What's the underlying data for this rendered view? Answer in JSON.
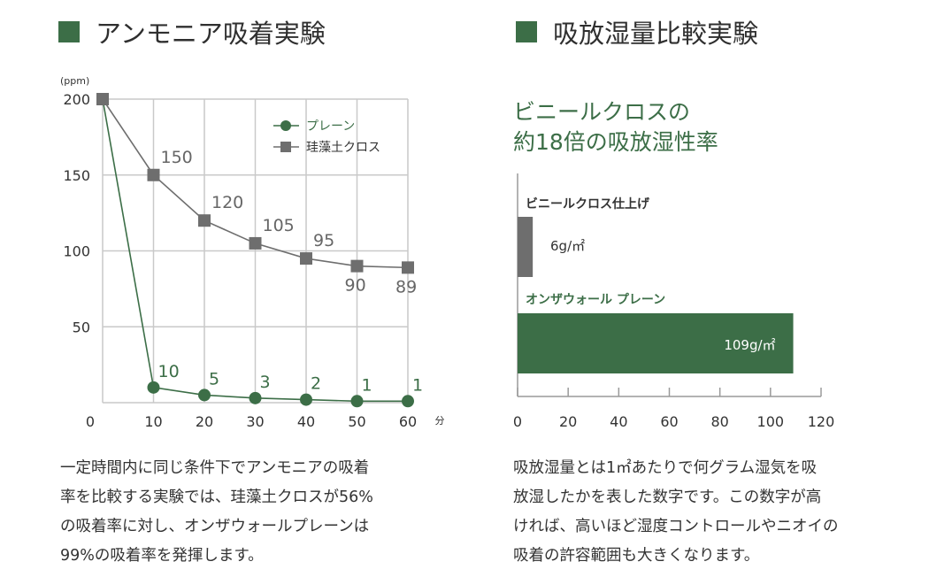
{
  "colors": {
    "accent": "#3c6e47",
    "gray": "#6e6e6e",
    "grid": "#c9c9c9"
  },
  "left_panel": {
    "title": "アンモニア吸着実験",
    "description": "一定時間内に同じ条件下でアンモニアの吸着\n率を比較する実験では、珪藻土クロスが56%\nの吸着率に対し、オンザウォールプレーンは\n99%の吸着率を発揮します。"
  },
  "right_panel": {
    "title": "吸放湿量比較実験",
    "headline": "ビニールクロスの\n約18倍の吸放湿性率",
    "description": "吸放湿量とは1㎡あたりで何グラム湿気を吸\n放湿したかを表した数字です。この数字が高\nければ、高いほど湿度コントロールやニオイの\n吸着の許容範囲も大きくなります。"
  },
  "chart_data": [
    {
      "type": "line",
      "ylabel": "(ppm)",
      "xlabel": "分",
      "x": [
        0,
        10,
        20,
        30,
        40,
        50,
        60
      ],
      "xticks": [
        "0",
        "10",
        "20",
        "30",
        "40",
        "50",
        "60"
      ],
      "yticks": [
        "50",
        "100",
        "150",
        "200"
      ],
      "ylim": [
        0,
        200
      ],
      "xlim": [
        0,
        60
      ],
      "grid": true,
      "legend": "top-right",
      "series": [
        {
          "name": "プレーン",
          "marker": "circle",
          "color": "#3c6e47",
          "x": [
            0,
            10,
            20,
            30,
            40,
            50,
            60
          ],
          "values": [
            200,
            10,
            5,
            3,
            2,
            1,
            1
          ],
          "labels": [
            "",
            "10",
            "5",
            "3",
            "2",
            "1",
            "1"
          ]
        },
        {
          "name": "珪藻土クロス",
          "marker": "square",
          "color": "#6e6e6e",
          "x": [
            0,
            10,
            20,
            30,
            40,
            50,
            60
          ],
          "values": [
            200,
            150,
            120,
            105,
            95,
            90,
            89
          ],
          "labels": [
            "",
            "150",
            "120",
            "105",
            "95",
            "90",
            "89"
          ]
        }
      ]
    },
    {
      "type": "bar",
      "orientation": "horizontal",
      "categories": [
        "ビニールクロス仕上げ",
        "オンザウォール プレーン"
      ],
      "values": [
        6,
        109
      ],
      "value_labels": [
        "6g/㎡",
        "109g/㎡"
      ],
      "colors": [
        "#6e6e6e",
        "#3c6e47"
      ],
      "xticks": [
        "0",
        "20",
        "40",
        "60",
        "80",
        "100",
        "120"
      ],
      "xlim": [
        0,
        120
      ]
    }
  ]
}
